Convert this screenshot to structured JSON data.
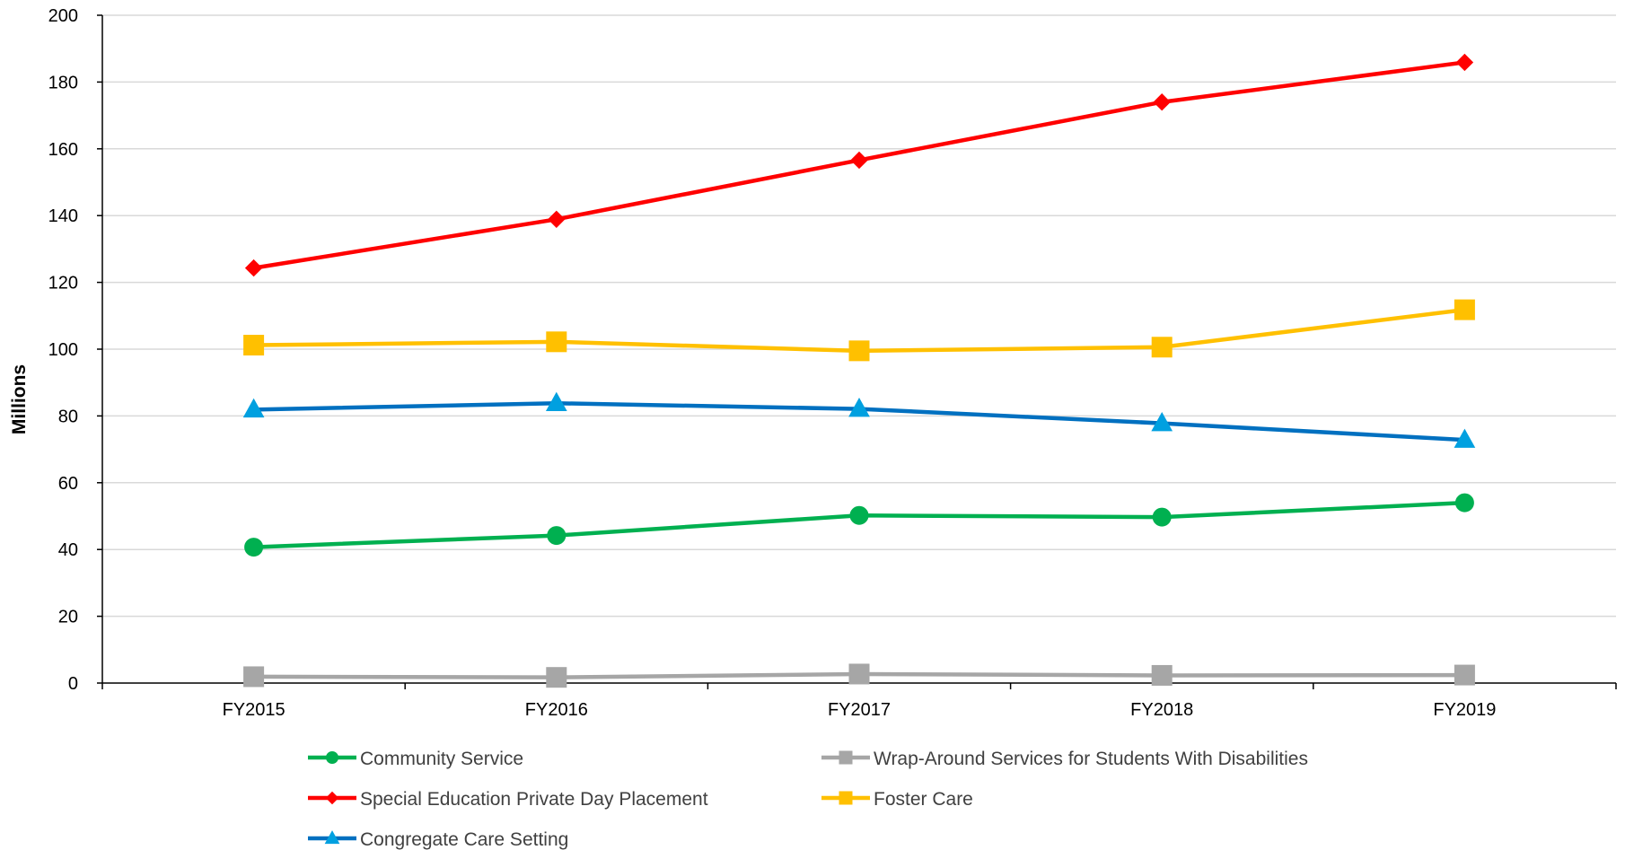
{
  "chart_data": {
    "type": "line",
    "title": "",
    "xlabel": "",
    "ylabel": "Millions",
    "ylim": [
      0,
      200
    ],
    "ytick_step": 20,
    "grid": "horizontal",
    "legend_position": "bottom",
    "categories": [
      "FY2015",
      "FY2016",
      "FY2017",
      "FY2018",
      "FY2019"
    ],
    "series": [
      {
        "name": "Community Service",
        "color": "#00B050",
        "marker": "circle",
        "values": [
          40.7,
          44.2,
          50.2,
          49.7,
          54.0
        ]
      },
      {
        "name": "Wrap-Around Services for Students With Disabilities",
        "color": "#A6A6A6",
        "marker": "square",
        "values": [
          1.9,
          1.7,
          2.7,
          2.3,
          2.4
        ]
      },
      {
        "name": "Special Education Private Day Placement",
        "color": "#FF0000",
        "marker": "diamond",
        "values": [
          124.3,
          138.9,
          156.6,
          174.0,
          185.9
        ]
      },
      {
        "name": "Foster Care",
        "color": "#FFC000",
        "marker": "square",
        "values": [
          101.2,
          102.2,
          99.5,
          100.6,
          111.8
        ]
      },
      {
        "name": "Congregate Care Setting",
        "color": "#0070C0",
        "markerColor": "#00A0E0",
        "marker": "triangle",
        "values": [
          81.9,
          83.8,
          82.1,
          77.8,
          72.8
        ]
      }
    ]
  }
}
